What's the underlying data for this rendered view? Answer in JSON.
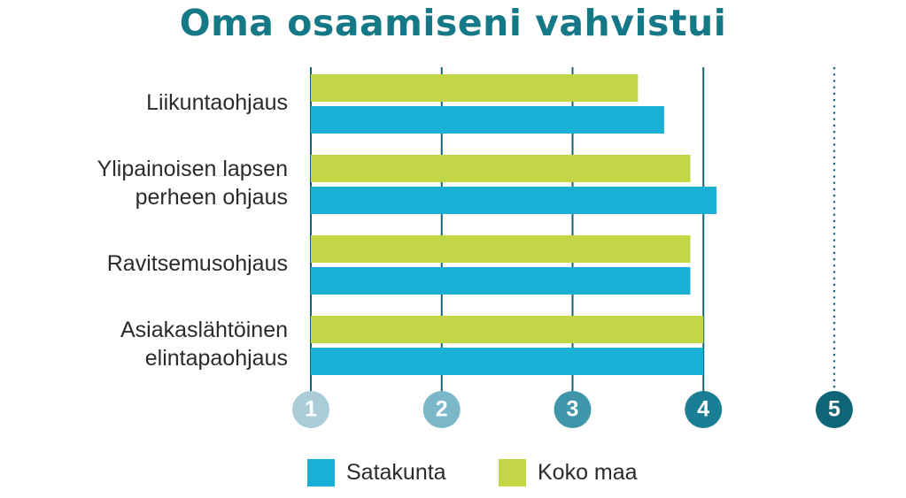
{
  "chart_data": {
    "type": "bar",
    "orientation": "horizontal",
    "title": "Oma osaamiseni vahvistui",
    "categories": [
      [
        "Liikuntaohjaus"
      ],
      [
        "Ylipainoisen lapsen",
        "perheen ohjaus"
      ],
      [
        "Ravitsemusohjaus"
      ],
      [
        "Asiakaslähtöinen",
        "elintapaohjaus"
      ]
    ],
    "series": [
      {
        "name": "Koko maa",
        "color": "#c3d645",
        "values": [
          3.5,
          3.9,
          3.9,
          4.0
        ]
      },
      {
        "name": "Satakunta",
        "color": "#1ab0d6",
        "values": [
          3.7,
          4.1,
          3.9,
          4.0
        ]
      }
    ],
    "xlim": [
      1,
      5
    ],
    "xticks": [
      1,
      2,
      3,
      4,
      5
    ],
    "tick_colors": [
      "#a9ccd7",
      "#7ab8c9",
      "#3f96ab",
      "#1a7f95",
      "#0f6679"
    ],
    "axis_line_color": "#0f6679",
    "title_color": "#157887",
    "legend": {
      "placement": "bottom",
      "order": [
        "Satakunta",
        "Koko maa"
      ]
    }
  }
}
